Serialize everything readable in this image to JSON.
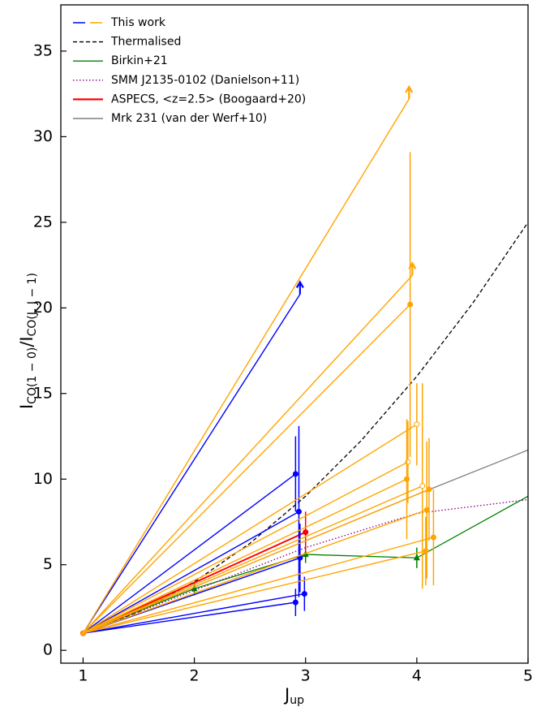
{
  "chart_data": {
    "type": "line",
    "xlabel": [
      "J",
      "up"
    ],
    "ylabel": [
      "I",
      "CO(1 − 0)",
      "/I",
      "CO(J, J − 1)"
    ],
    "xlim": [
      0.8,
      5.0
    ],
    "ylim": [
      -0.75,
      37.7
    ],
    "xticks": [
      1,
      2,
      3,
      4,
      5
    ],
    "yticks": [
      0,
      5,
      10,
      15,
      20,
      25,
      30,
      35
    ],
    "legend": "upper left",
    "this_work": {
      "name": "This work",
      "colors": [
        "#0000ff",
        "#ffa500"
      ],
      "lines": [
        {
          "color": "#0000ff",
          "x": [
            1,
            2.95
          ],
          "values": [
            1,
            20.8
          ],
          "lower_limit": true
        },
        {
          "color": "#0000ff",
          "x": [
            1,
            2.91
          ],
          "values": [
            1,
            10.3
          ],
          "error": 2.2,
          "marker": "filled"
        },
        {
          "color": "#0000ff",
          "x": [
            1,
            2.94
          ],
          "values": [
            1,
            8.1
          ],
          "error": 5.0,
          "marker": "filled"
        },
        {
          "color": "#0000ff",
          "x": [
            1,
            2.95
          ],
          "values": [
            1,
            5.4
          ],
          "error": 2.0,
          "marker": "filled"
        },
        {
          "color": "#0000ff",
          "x": [
            1,
            2.91
          ],
          "values": [
            1,
            2.8
          ],
          "error": 0.8,
          "marker": "filled"
        },
        {
          "color": "#0000ff",
          "x": [
            1,
            2.99
          ],
          "values": [
            1,
            3.3
          ],
          "error": 1.0,
          "marker": "filled"
        },
        {
          "color": "#ffa500",
          "x": [
            1,
            3.93
          ],
          "values": [
            1,
            32.2
          ],
          "lower_limit": true
        },
        {
          "color": "#ffa500",
          "x": [
            1,
            3.96
          ],
          "values": [
            1,
            21.9
          ],
          "lower_limit": true
        },
        {
          "color": "#ffa500",
          "x": [
            1,
            3.94
          ],
          "values": [
            1,
            20.2
          ],
          "error": 8.9,
          "marker": "filled"
        },
        {
          "color": "#ffa500",
          "x": [
            1,
            4.0
          ],
          "values": [
            1,
            13.2
          ],
          "error": 2.4,
          "marker": "open"
        },
        {
          "color": "#ffa500",
          "x": [
            1,
            3.92
          ],
          "values": [
            1,
            11.0
          ],
          "error": 2.4,
          "marker": "open"
        },
        {
          "color": "#ffa500",
          "x": [
            1,
            3.91
          ],
          "values": [
            1,
            10.0
          ],
          "error": 3.5,
          "marker": "filled"
        },
        {
          "color": "#ffa500",
          "x": [
            1,
            4.05
          ],
          "values": [
            1,
            9.6
          ],
          "error": 6.0,
          "marker": "open"
        },
        {
          "color": "#ffa500",
          "x": [
            1,
            4.11
          ],
          "values": [
            1,
            9.4
          ],
          "error": 3.0,
          "marker": "filled"
        },
        {
          "color": "#ffa500",
          "x": [
            1,
            4.09
          ],
          "values": [
            1,
            8.2
          ],
          "error": 4.0,
          "marker": "filled"
        },
        {
          "color": "#ffa500",
          "x": [
            1,
            4.15
          ],
          "values": [
            1,
            6.6
          ],
          "error": 2.8,
          "marker": "filled"
        },
        {
          "color": "#ffa500",
          "x": [
            1,
            4.08
          ],
          "values": [
            1,
            5.8
          ],
          "error": 2.0,
          "marker": "filled"
        }
      ]
    },
    "series": [
      {
        "name": "Thermalised",
        "color": "#000000",
        "style": "dashed",
        "x": [
          1,
          1.5,
          2,
          2.5,
          3,
          3.5,
          4,
          4.5,
          5
        ],
        "values": [
          1,
          2.25,
          4,
          6.25,
          9,
          12.25,
          16,
          20.25,
          25
        ]
      },
      {
        "name": "Birkin+21",
        "color": "#008000",
        "style": "solid",
        "marker": "triangle",
        "x": [
          1,
          2,
          3,
          4,
          5
        ],
        "values": [
          1,
          3.6,
          5.6,
          5.4,
          9.0
        ],
        "errors": [
          null,
          0.4,
          0.5,
          0.6,
          null
        ]
      },
      {
        "name": "SMM J2135-0102 (Danielson+11)",
        "color": "#800080",
        "style": "dotted",
        "x": [
          1,
          2,
          3,
          4,
          5
        ],
        "values": [
          1,
          3.5,
          6.0,
          8.0,
          8.8
        ]
      },
      {
        "name": "ASPECS, <z=2.5> (Boogaard+20)",
        "color": "#ff0000",
        "style": "thick",
        "marker": "circle",
        "x": [
          1,
          3
        ],
        "values": [
          1,
          6.9
        ],
        "errors": [
          null,
          1.2
        ]
      },
      {
        "name": "Mrk 231 (van der Werf+10)",
        "color": "#808080",
        "style": "solid",
        "x": [
          1,
          3,
          4,
          5
        ],
        "values": [
          1,
          6.4,
          9.1,
          11.7
        ]
      }
    ]
  }
}
